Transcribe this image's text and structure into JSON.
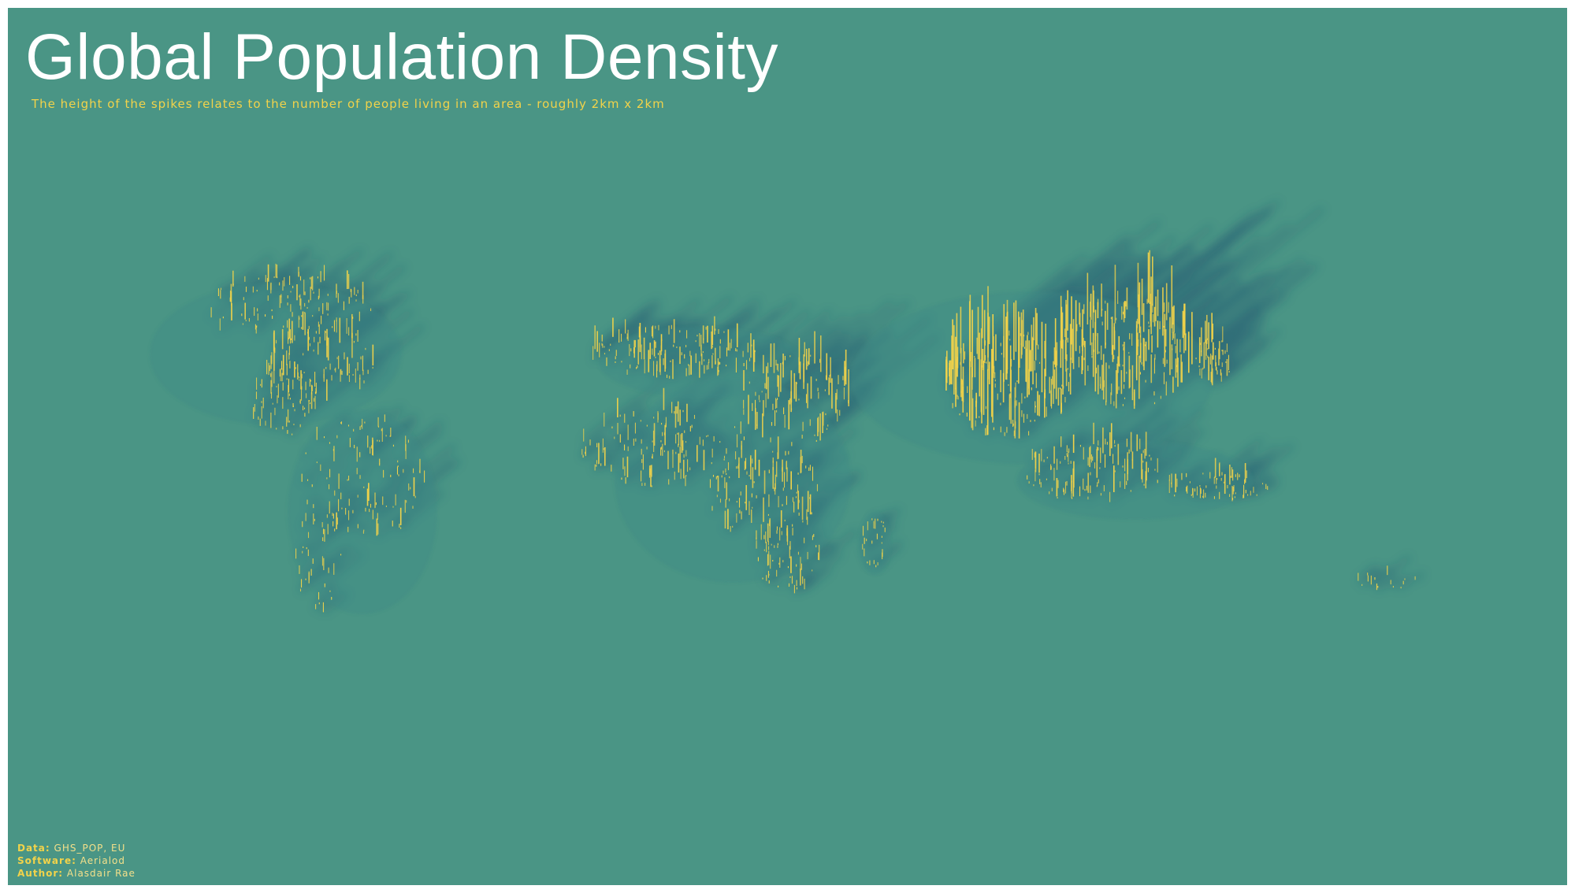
{
  "title": "Global Population Density",
  "subtitle": "The height of the spikes relates to the number of people living in an area - roughly 2km x 2km",
  "credits": [
    {
      "key": "Data:",
      "value": "GHS_POP, EU"
    },
    {
      "key": "Software:",
      "value": "Aerialod"
    },
    {
      "key": "Author:",
      "value": "Alasdair Rae"
    }
  ],
  "colors": {
    "background": "#4a9585",
    "spike": "#f2d34a",
    "shadow": "#1f4f6e"
  }
}
